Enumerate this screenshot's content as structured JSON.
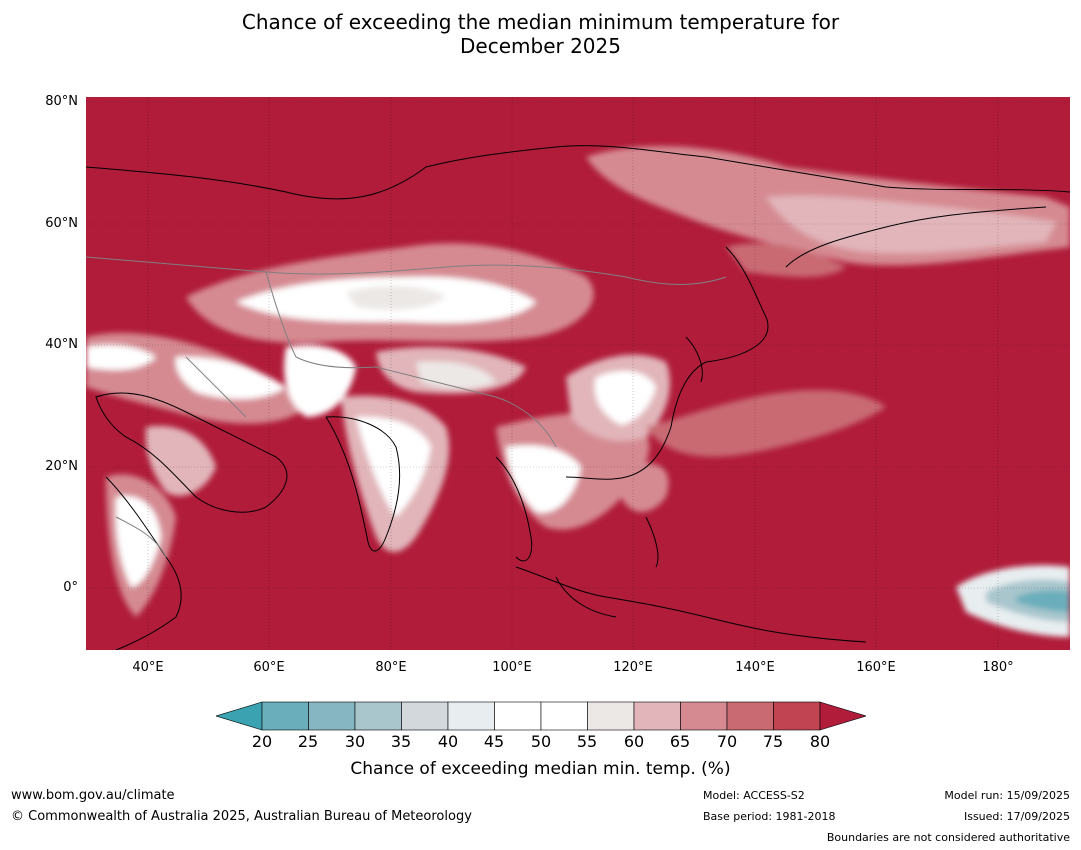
{
  "title_line1": "Chance of exceeding the median minimum temperature for",
  "title_line2": "December 2025",
  "map": {
    "lat_labels": [
      "80°N",
      "60°N",
      "40°N",
      "20°N",
      "0°"
    ],
    "lon_labels": [
      "40°E",
      "60°E",
      "80°E",
      "100°E",
      "120°E",
      "140°E",
      "160°E",
      "180°"
    ],
    "colors": {
      "high": "#b01c3a",
      "c75": "#c04452",
      "c70": "#c96a73",
      "c65": "#d58a92",
      "c60": "#e1b5b9",
      "c55": "#ece8e6",
      "near": "#ffffff",
      "c40": "#e8eef0",
      "c35": "#d2d8db",
      "c30": "#a9c6cd",
      "c25": "#86b6c2",
      "c20": "#6aaebb",
      "low": "#3aa2b0"
    }
  },
  "colorbar": {
    "ticks": [
      "20",
      "25",
      "30",
      "35",
      "40",
      "45",
      "50",
      "55",
      "60",
      "65",
      "70",
      "75",
      "80"
    ],
    "label": "Chance of exceeding median min. temp. (%)"
  },
  "footer": {
    "website": "www.bom.gov.au/climate",
    "copyright": "© Commonwealth of Australia 2025, Australian Bureau of Meteorology",
    "model": "Model: ACCESS-S2",
    "base_period": "Base period: 1981-2018",
    "model_run": "Model run: 15/09/2025",
    "issued": "Issued: 17/09/2025",
    "disclaimer": "Boundaries are not considered authoritative"
  }
}
